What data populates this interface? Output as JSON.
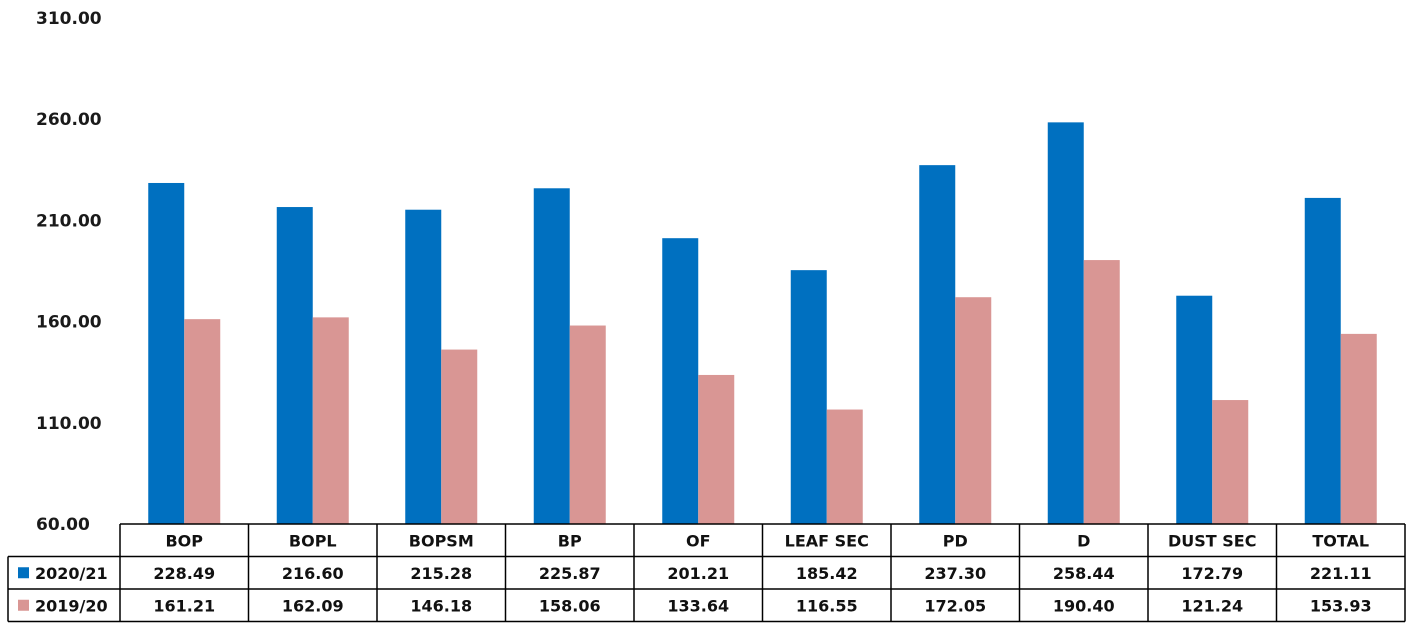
{
  "chart_data": {
    "type": "bar",
    "title": "",
    "xlabel": "",
    "ylabel": "",
    "ylim": [
      60,
      310
    ],
    "yticks": [
      "60.00",
      "110.00",
      "160.00",
      "210.00",
      "260.00",
      "310.00"
    ],
    "grid": false,
    "legend": "data-table",
    "categories": [
      "BOP",
      "BOPL",
      "BOPSM",
      "BP",
      "OF",
      "LEAF SEC",
      "PD",
      "D",
      "DUST SEC",
      "TOTAL"
    ],
    "series": [
      {
        "name": "2020/21",
        "color": "#0070C0",
        "values": [
          228.49,
          216.6,
          215.28,
          225.87,
          201.21,
          185.42,
          237.3,
          258.44,
          172.79,
          221.11
        ],
        "labels": [
          "228.49",
          "216.60",
          "215.28",
          "225.87",
          "201.21",
          "185.42",
          "237.30",
          "258.44",
          "172.79",
          "221.11"
        ]
      },
      {
        "name": "2019/20",
        "color": "#D99694",
        "values": [
          161.21,
          162.09,
          146.18,
          158.06,
          133.64,
          116.55,
          172.05,
          190.4,
          121.24,
          153.93
        ],
        "labels": [
          "161.21",
          "162.09",
          "146.18",
          "158.06",
          "133.64",
          "116.55",
          "172.05",
          "190.40",
          "121.24",
          "153.93"
        ]
      }
    ]
  }
}
